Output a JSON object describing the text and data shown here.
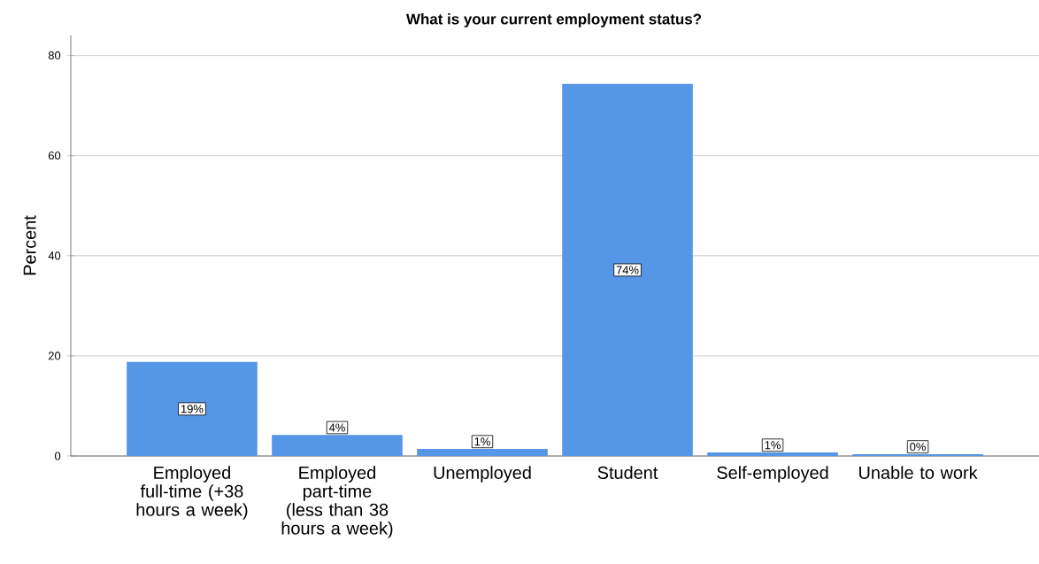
{
  "chart_data": {
    "type": "bar",
    "title": "What is your current employment status?",
    "ylabel": "Percent",
    "categories": [
      "Employed full-time (+38 hours a week)",
      "Employed part-time (less than 38 hours a week)",
      "Unemployed",
      "Student",
      "Self-employed",
      "Unable to work"
    ],
    "values": [
      18.8,
      4.2,
      1.4,
      74.3,
      0.7,
      0.35
    ],
    "value_labels": [
      "19%",
      "4%",
      "1%",
      "74%",
      "1%",
      "0%"
    ],
    "color": "#5596e6",
    "ylim": [
      0,
      84
    ],
    "yticks": [
      0,
      20,
      40,
      60,
      80
    ],
    "grid": "y"
  }
}
